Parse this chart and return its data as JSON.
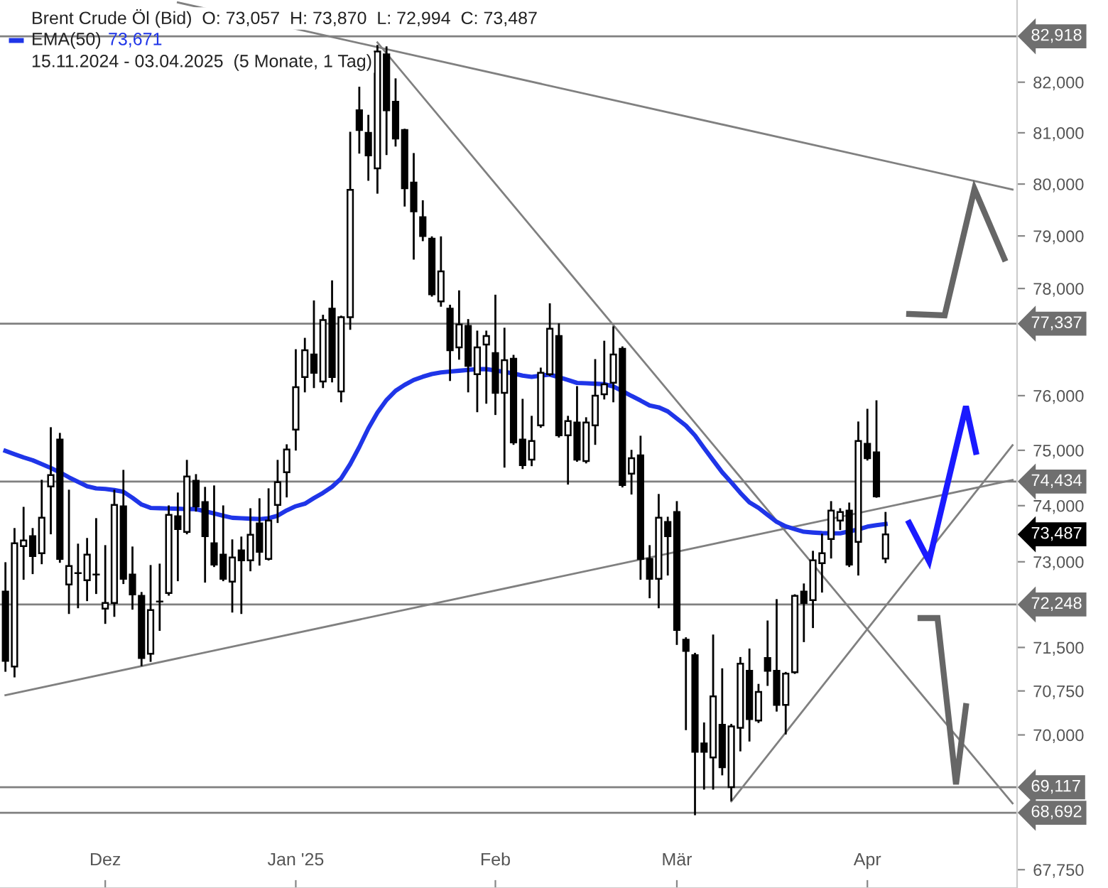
{
  "chart_data": {
    "type": "candlestick",
    "title": "Brent Crude Öl (Bid)  O: 73,057  H: 73,870  L: 72,994  C: 73,487",
    "subtitle": "15.11.2024 - 03.04.2025  (5 Monate, 1 Tag)",
    "categories": [
      null,
      null,
      null,
      null,
      null,
      null,
      null,
      null,
      null,
      null,
      null,
      "Dez",
      null,
      null,
      null,
      null,
      null,
      null,
      null,
      null,
      null,
      null,
      null,
      null,
      null,
      null,
      null,
      null,
      null,
      null,
      null,
      null,
      "Jan '25",
      null,
      null,
      null,
      null,
      null,
      null,
      null,
      null,
      null,
      null,
      null,
      null,
      null,
      null,
      null,
      null,
      null,
      null,
      null,
      null,
      null,
      "Feb",
      null,
      null,
      null,
      null,
      null,
      null,
      null,
      null,
      null,
      null,
      null,
      null,
      null,
      null,
      null,
      null,
      null,
      null,
      null,
      "Mär",
      null,
      null,
      null,
      null,
      null,
      null,
      null,
      null,
      null,
      null,
      null,
      null,
      null,
      null,
      null,
      null,
      null,
      null,
      null,
      null,
      "Apr",
      null,
      null,
      null,
      null,
      null,
      null,
      null,
      null,
      null,
      null,
      null,
      null,
      null,
      null,
      null,
      null
    ],
    "ohlc": [
      [
        72475,
        72975,
        71097,
        71268
      ],
      [
        71170,
        73582,
        71000,
        73330
      ],
      [
        73278,
        73961,
        72700,
        73380
      ],
      [
        73455,
        73582,
        72800,
        73101
      ],
      [
        73152,
        74448,
        72975,
        73784
      ],
      [
        74346,
        75403,
        73506,
        74550
      ],
      [
        75195,
        75299,
        73000,
        73051
      ],
      [
        72600,
        74269,
        72100,
        72925
      ],
      [
        72800,
        73304,
        72200,
        72800
      ],
      [
        72675,
        73405,
        72325,
        73127
      ],
      [
        72775,
        73759,
        72450,
        72775
      ],
      [
        72175,
        73278,
        71927,
        72275
      ],
      [
        72275,
        74269,
        72050,
        74013
      ],
      [
        73987,
        74627,
        72625,
        72700
      ],
      [
        72775,
        73253,
        72175,
        72425
      ],
      [
        72400,
        72450,
        71195,
        71317
      ],
      [
        71390,
        72925,
        71268,
        72150
      ],
      [
        72300,
        72950,
        71805,
        72300
      ],
      [
        72450,
        73987,
        72420,
        73835
      ],
      [
        73810,
        74218,
        72675,
        73582
      ],
      [
        73531,
        74808,
        73506,
        74525
      ],
      [
        74448,
        74550,
        73911,
        73987
      ],
      [
        74064,
        74320,
        72650,
        73455
      ],
      [
        73330,
        74346,
        72925,
        72950
      ],
      [
        73127,
        73987,
        72675,
        72700
      ],
      [
        72650,
        73380,
        72125,
        73076
      ],
      [
        73202,
        73430,
        72100,
        73025
      ],
      [
        73025,
        73936,
        72850,
        73481
      ],
      [
        73683,
        74115,
        72950,
        73177
      ],
      [
        73051,
        74294,
        73040,
        73734
      ],
      [
        74013,
        74808,
        73708,
        74422
      ],
      [
        74602,
        75091,
        74166,
        75013
      ],
      [
        75377,
        76842,
        75013,
        76158
      ],
      [
        76342,
        77054,
        76079,
        76842
      ],
      [
        76763,
        77756,
        76158,
        76421
      ],
      [
        76263,
        77486,
        76158,
        77405
      ],
      [
        77621,
        78135,
        76263,
        76342
      ],
      [
        76079,
        77470,
        75896,
        77459
      ],
      [
        77459,
        81000,
        77243,
        79889
      ],
      [
        81445,
        81890,
        80612,
        81056
      ],
      [
        81000,
        81334,
        80083,
        80556
      ],
      [
        80306,
        82723,
        79833,
        82612
      ],
      [
        82556,
        82695,
        80584,
        81445
      ],
      [
        81612,
        82056,
        80750,
        80889
      ],
      [
        81056,
        81060,
        79584,
        79917
      ],
      [
        80028,
        80584,
        78567,
        79473
      ],
      [
        79361,
        79667,
        78919,
        79000
      ],
      [
        78946,
        78973,
        77865,
        77892
      ],
      [
        77756,
        78973,
        77675,
        78324
      ],
      [
        77621,
        77675,
        76289,
        76842
      ],
      [
        76894,
        77946,
        76684,
        77324
      ],
      [
        77297,
        77405,
        76079,
        76552
      ],
      [
        76395,
        77189,
        75714,
        76894
      ],
      [
        76947,
        77189,
        75870,
        77108
      ],
      [
        76789,
        77864,
        75663,
        76053
      ],
      [
        76053,
        77243,
        74704,
        76658
      ],
      [
        76684,
        76737,
        75117,
        75143
      ],
      [
        75195,
        75923,
        74678,
        74730
      ],
      [
        74832,
        75611,
        74730,
        75169
      ],
      [
        75455,
        76500,
        75429,
        76421
      ],
      [
        76395,
        77702,
        76380,
        77243
      ],
      [
        77108,
        77324,
        75250,
        75273
      ],
      [
        75273,
        75611,
        74397,
        75533
      ],
      [
        75507,
        76158,
        74810,
        74832
      ],
      [
        74806,
        75585,
        74780,
        75507
      ],
      [
        75455,
        76658,
        75117,
        76000
      ],
      [
        76026,
        77000,
        75948,
        76210
      ],
      [
        76237,
        77270,
        75896,
        76763
      ],
      [
        76868,
        76894,
        74346,
        74371
      ],
      [
        74576,
        74990,
        74218,
        74857
      ],
      [
        74909,
        75247,
        72700,
        73051
      ],
      [
        73051,
        73278,
        72375,
        72700
      ],
      [
        72700,
        74192,
        72200,
        73784
      ],
      [
        73708,
        73784,
        72775,
        73455
      ],
      [
        73886,
        74064,
        71561,
        71805
      ],
      [
        71634,
        71659,
        70098,
        71439
      ],
      [
        71366,
        71390,
        68667,
        69714
      ],
      [
        69857,
        70195,
        69095,
        69714
      ],
      [
        69619,
        71707,
        69095,
        70658
      ],
      [
        70171,
        71122,
        69334,
        69453
      ],
      [
        69119,
        70171,
        68905,
        70146
      ],
      [
        70122,
        71317,
        69738,
        71220
      ],
      [
        71098,
        71464,
        69905,
        70268
      ],
      [
        70244,
        70854,
        70220,
        70732
      ],
      [
        71317,
        71951,
        70854,
        71098
      ],
      [
        71098,
        72325,
        70414,
        70512
      ],
      [
        70512,
        71060,
        70024,
        71049
      ],
      [
        71073,
        72410,
        71060,
        72400
      ],
      [
        72475,
        72600,
        71610,
        72275
      ],
      [
        72325,
        73177,
        71854,
        73025
      ],
      [
        72975,
        73481,
        72475,
        73152
      ],
      [
        73405,
        74064,
        73076,
        73911
      ],
      [
        73734,
        73936,
        73582,
        73886
      ],
      [
        73911,
        74038,
        72925,
        72950
      ],
      [
        73354,
        75507,
        72775,
        75169
      ],
      [
        75117,
        75740,
        74832,
        74857
      ],
      [
        74962,
        75896,
        74160,
        74166
      ],
      [
        73057,
        73870,
        72994,
        73487
      ],
      null,
      null,
      null,
      null,
      null,
      null,
      null,
      null,
      null,
      null,
      null,
      null,
      null,
      null
    ],
    "series": [
      {
        "name": "EMA(50)",
        "type": "line",
        "color": "#1f35e8",
        "values": [
          74990,
          74930,
          74870,
          74820,
          74750,
          74680,
          74600,
          74510,
          74430,
          74350,
          74310,
          74300,
          74280,
          74250,
          74140,
          74020,
          73960,
          73955,
          73950,
          73945,
          73940,
          73938,
          73900,
          73860,
          73820,
          73783,
          73775,
          73767,
          73760,
          73775,
          73820,
          73915,
          73990,
          74035,
          74135,
          74230,
          74340,
          74490,
          74750,
          75060,
          75400,
          75690,
          75920,
          76090,
          76200,
          76290,
          76350,
          76400,
          76430,
          76445,
          76460,
          76475,
          76490,
          76490,
          76465,
          76440,
          76410,
          76370,
          76346,
          76370,
          76390,
          76340,
          76290,
          76235,
          76228,
          76220,
          76213,
          76170,
          76085,
          75995,
          75910,
          75820,
          75785,
          75710,
          75580,
          75450,
          75270,
          75040,
          74820,
          74600,
          74420,
          74230,
          74060,
          73960,
          73835,
          73710,
          73630,
          73580,
          73533,
          73520,
          73510,
          73506,
          73506,
          73540,
          73575,
          73625,
          73650,
          73671,
          null,
          null,
          null,
          null,
          null,
          null,
          null,
          null,
          null,
          null,
          null,
          null,
          null,
          null
        ]
      },
      {
        "type": "line",
        "color": "#808080",
        "values": [
          null,
          null,
          null,
          null,
          null,
          null,
          null,
          null,
          null,
          null,
          null,
          null,
          null,
          null,
          null,
          null,
          null,
          null,
          null,
          83600,
          null,
          null,
          null,
          null,
          null,
          null,
          null,
          null,
          null,
          null,
          null,
          null,
          null,
          null,
          null,
          null,
          null,
          null,
          null,
          null,
          null,
          null,
          null,
          null,
          null,
          null,
          null,
          null,
          null,
          null,
          null,
          null,
          null,
          null,
          null,
          null,
          null,
          null,
          null,
          null,
          null,
          null,
          null,
          null,
          null,
          null,
          null,
          null,
          null,
          null,
          null,
          null,
          null,
          null,
          null,
          null,
          null,
          null,
          null,
          null,
          null,
          null,
          null,
          null,
          null,
          null,
          null,
          null,
          null,
          null,
          null,
          null,
          null,
          null,
          null,
          null,
          null,
          null,
          null,
          null,
          null,
          null,
          null,
          null,
          null,
          null,
          null,
          null,
          null,
          null,
          null,
          79894
        ]
      },
      {
        "type": "line",
        "color": "#808080",
        "values": [
          70678,
          null,
          null,
          null,
          null,
          null,
          null,
          null,
          null,
          null,
          null,
          null,
          null,
          null,
          null,
          null,
          null,
          null,
          null,
          null,
          null,
          null,
          null,
          null,
          null,
          null,
          null,
          null,
          null,
          null,
          null,
          null,
          null,
          null,
          null,
          null,
          null,
          null,
          null,
          null,
          null,
          null,
          null,
          null,
          null,
          null,
          null,
          null,
          null,
          null,
          null,
          null,
          null,
          null,
          null,
          null,
          null,
          null,
          null,
          null,
          null,
          null,
          null,
          null,
          null,
          null,
          null,
          null,
          null,
          null,
          null,
          null,
          null,
          null,
          null,
          null,
          null,
          null,
          null,
          null,
          null,
          null,
          null,
          null,
          null,
          null,
          null,
          null,
          null,
          null,
          null,
          null,
          null,
          null,
          null,
          null,
          null,
          null,
          null,
          null,
          null,
          null,
          null,
          null,
          null,
          null,
          null,
          null,
          null,
          null,
          null,
          74461
        ]
      },
      {
        "type": "line",
        "color": "#808080",
        "values": [
          null,
          null,
          null,
          null,
          null,
          null,
          null,
          null,
          null,
          null,
          null,
          null,
          null,
          null,
          null,
          null,
          null,
          null,
          null,
          null,
          null,
          null,
          null,
          null,
          null,
          null,
          null,
          null,
          null,
          null,
          null,
          null,
          null,
          null,
          null,
          null,
          null,
          null,
          null,
          null,
          null,
          82793,
          null,
          null,
          null,
          null,
          null,
          null,
          null,
          null,
          null,
          null,
          null,
          null,
          null,
          null,
          null,
          null,
          null,
          null,
          null,
          null,
          null,
          null,
          null,
          null,
          null,
          null,
          null,
          null,
          null,
          null,
          null,
          null,
          null,
          null,
          null,
          null,
          null,
          null,
          null,
          null,
          null,
          null,
          null,
          null,
          null,
          null,
          null,
          null,
          null,
          null,
          null,
          null,
          null,
          null,
          null,
          null,
          null,
          null,
          null,
          null,
          null,
          null,
          null,
          null,
          null,
          null,
          null,
          null,
          null,
          68848
        ]
      },
      {
        "type": "line",
        "color": "#808080",
        "values": [
          null,
          null,
          null,
          null,
          null,
          null,
          null,
          null,
          null,
          null,
          null,
          null,
          null,
          null,
          null,
          null,
          null,
          null,
          null,
          null,
          null,
          null,
          null,
          null,
          null,
          null,
          null,
          null,
          null,
          null,
          null,
          null,
          null,
          null,
          null,
          null,
          null,
          null,
          null,
          null,
          null,
          null,
          null,
          null,
          null,
          null,
          null,
          null,
          null,
          null,
          null,
          null,
          null,
          null,
          null,
          null,
          null,
          null,
          null,
          null,
          null,
          null,
          null,
          null,
          null,
          null,
          null,
          null,
          null,
          null,
          null,
          null,
          null,
          null,
          null,
          null,
          null,
          null,
          null,
          null,
          68881,
          null,
          null,
          null,
          null,
          null,
          null,
          null,
          null,
          null,
          null,
          null,
          null,
          null,
          null,
          null,
          null,
          null,
          null,
          null,
          null,
          null,
          null,
          null,
          null,
          null,
          null,
          null,
          null,
          null,
          null,
          75091
        ]
      }
    ],
    "log": "y",
    "ylim": [
      67450,
      83650
    ],
    "yticks": [
      {
        "value": 82000,
        "label": "82,000"
      },
      {
        "value": 81000,
        "label": "81,000"
      },
      {
        "value": 80000,
        "label": "80,000"
      },
      {
        "value": 79000,
        "label": "79,000"
      },
      {
        "value": 78000,
        "label": "78,000"
      },
      {
        "value": 76000,
        "label": "76,000"
      },
      {
        "value": 75000,
        "label": "75,000"
      },
      {
        "value": 74000,
        "label": "74,000"
      },
      {
        "value": 73000,
        "label": "73,000"
      },
      {
        "value": 71500,
        "label": "71,500"
      },
      {
        "value": 70750,
        "label": "70,750"
      },
      {
        "value": 70000,
        "label": "70,000"
      },
      {
        "value": 67750,
        "label": "67,750"
      }
    ],
    "ref_lines": [
      {
        "axis": "y",
        "value": 82918,
        "label": "82,918",
        "color": "#808080"
      },
      {
        "axis": "y",
        "value": 77337,
        "label": "77,337",
        "color": "#808080"
      },
      {
        "axis": "y",
        "value": 74434,
        "label": "74,434",
        "color": "#808080"
      },
      {
        "axis": "y",
        "value": 72248,
        "label": "72,248",
        "color": "#808080"
      },
      {
        "axis": "y",
        "value": 69117,
        "label": "69,117",
        "color": "#808080"
      },
      {
        "axis": "y",
        "value": 68692,
        "label": "68,692",
        "color": "#808080"
      }
    ],
    "annotations": [
      "73,671",
      "73,487"
    ],
    "legend": "top left",
    "grid": false
  }
}
